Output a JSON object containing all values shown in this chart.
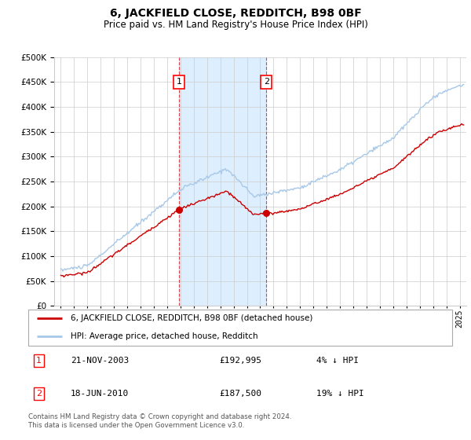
{
  "title": "6, JACKFIELD CLOSE, REDDITCH, B98 0BF",
  "subtitle": "Price paid vs. HM Land Registry's House Price Index (HPI)",
  "ytick_values": [
    0,
    50000,
    100000,
    150000,
    200000,
    250000,
    300000,
    350000,
    400000,
    450000,
    500000
  ],
  "ylim": [
    0,
    500000
  ],
  "xlim_start": 1994.5,
  "xlim_end": 2025.5,
  "xtick_years": [
    1995,
    1996,
    1997,
    1998,
    1999,
    2000,
    2001,
    2002,
    2003,
    2004,
    2005,
    2006,
    2007,
    2008,
    2009,
    2010,
    2011,
    2012,
    2013,
    2014,
    2015,
    2016,
    2017,
    2018,
    2019,
    2020,
    2021,
    2022,
    2023,
    2024,
    2025
  ],
  "transaction1_date": 2003.9,
  "transaction1_price": 192995,
  "transaction1_label": "1",
  "transaction2_date": 2010.46,
  "transaction2_price": 187500,
  "transaction2_label": "2",
  "hpi_color": "#a8c8e8",
  "price_color": "#cc0000",
  "marker_color": "#cc0000",
  "shaded_region_color": "#ddeeff",
  "dashed_line_color": "#cc0000",
  "legend_line1": "6, JACKFIELD CLOSE, REDDITCH, B98 0BF (detached house)",
  "legend_line2": "HPI: Average price, detached house, Redditch",
  "table_row1_num": "1",
  "table_row1_date": "21-NOV-2003",
  "table_row1_price": "£192,995",
  "table_row1_hpi": "4% ↓ HPI",
  "table_row2_num": "2",
  "table_row2_date": "18-JUN-2010",
  "table_row2_price": "£187,500",
  "table_row2_hpi": "19% ↓ HPI",
  "footnote": "Contains HM Land Registry data © Crown copyright and database right 2024.\nThis data is licensed under the Open Government Licence v3.0.",
  "background_color": "#ffffff",
  "grid_color": "#cccccc",
  "title_fontsize": 10,
  "subtitle_fontsize": 8.5,
  "tick_fontsize": 7.5
}
